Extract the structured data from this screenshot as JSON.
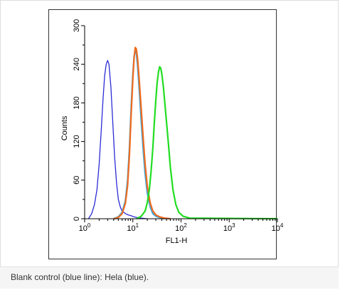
{
  "caption": "Blank control (blue line): Hela (blue).",
  "chart_data": {
    "type": "line",
    "title": "",
    "xlabel": "FL1-H",
    "ylabel": "Counts",
    "xscale": "log",
    "xlim": [
      1,
      10000
    ],
    "ylim": [
      0,
      300
    ],
    "x_ticks": [
      {
        "base": "10",
        "exp": "0"
      },
      {
        "base": "10",
        "exp": "1"
      },
      {
        "base": "10",
        "exp": "2"
      },
      {
        "base": "10",
        "exp": "3"
      },
      {
        "base": "10",
        "exp": "4"
      }
    ],
    "y_ticks": [
      "0",
      "60",
      "120",
      "180",
      "240",
      "300"
    ],
    "grid": false,
    "legend": "none",
    "series": [
      {
        "color": "#2b2bd6",
        "x": [
          1.2,
          1.4,
          1.6,
          1.8,
          2.0,
          2.2,
          2.4,
          2.6,
          2.8,
          3.0,
          3.2,
          3.5,
          3.8,
          4.2,
          4.6,
          5.0,
          5.5,
          6.0,
          7.0,
          8.0,
          9.0,
          10.5,
          12.0,
          15.0,
          20.0
        ],
        "y": [
          0,
          8,
          22,
          45,
          85,
          135,
          185,
          222,
          240,
          246,
          240,
          205,
          155,
          95,
          55,
          30,
          18,
          12,
          8,
          6,
          5,
          3,
          2,
          1,
          0
        ]
      },
      {
        "color": "#3ca7dc",
        "x": [
          4.0,
          5.0,
          6.0,
          7.0,
          7.8,
          8.5,
          9.2,
          10.0,
          10.6,
          11.2,
          11.8,
          12.5,
          13.2,
          14.0,
          15.0,
          16.5,
          18.0,
          20.0,
          23.0,
          26.0,
          30.0,
          36.0,
          45.0
        ],
        "y": [
          0,
          3,
          10,
          28,
          60,
          110,
          170,
          225,
          252,
          262,
          258,
          240,
          215,
          185,
          150,
          105,
          70,
          40,
          18,
          8,
          4,
          2,
          0
        ]
      },
      {
        "color": "#f06a1e",
        "x": [
          4.0,
          5.0,
          6.0,
          7.0,
          7.8,
          8.5,
          9.2,
          10.0,
          10.6,
          11.2,
          11.8,
          12.5,
          13.2,
          14.0,
          15.0,
          16.5,
          18.0,
          20.0,
          23.0,
          26.0,
          30.0,
          36.0,
          45.0,
          60.0
        ],
        "y": [
          0,
          2,
          8,
          24,
          52,
          100,
          160,
          218,
          250,
          266,
          264,
          250,
          228,
          200,
          168,
          122,
          85,
          50,
          24,
          12,
          6,
          3,
          1,
          0
        ]
      },
      {
        "color": "#22dd22",
        "x": [
          12.0,
          15.0,
          18.0,
          20.0,
          22.0,
          24.0,
          26.0,
          28.0,
          30.0,
          32.0,
          34.0,
          36.0,
          38.0,
          40.0,
          43.0,
          46.0,
          50.0,
          55.0,
          60.0,
          68.0,
          78.0,
          90.0,
          110.0,
          150.0,
          10000.0
        ],
        "y": [
          0,
          4,
          12,
          25,
          45,
          75,
          110,
          150,
          185,
          212,
          228,
          236,
          234,
          225,
          205,
          180,
          150,
          115,
          80,
          45,
          22,
          10,
          4,
          1,
          0
        ]
      }
    ]
  }
}
